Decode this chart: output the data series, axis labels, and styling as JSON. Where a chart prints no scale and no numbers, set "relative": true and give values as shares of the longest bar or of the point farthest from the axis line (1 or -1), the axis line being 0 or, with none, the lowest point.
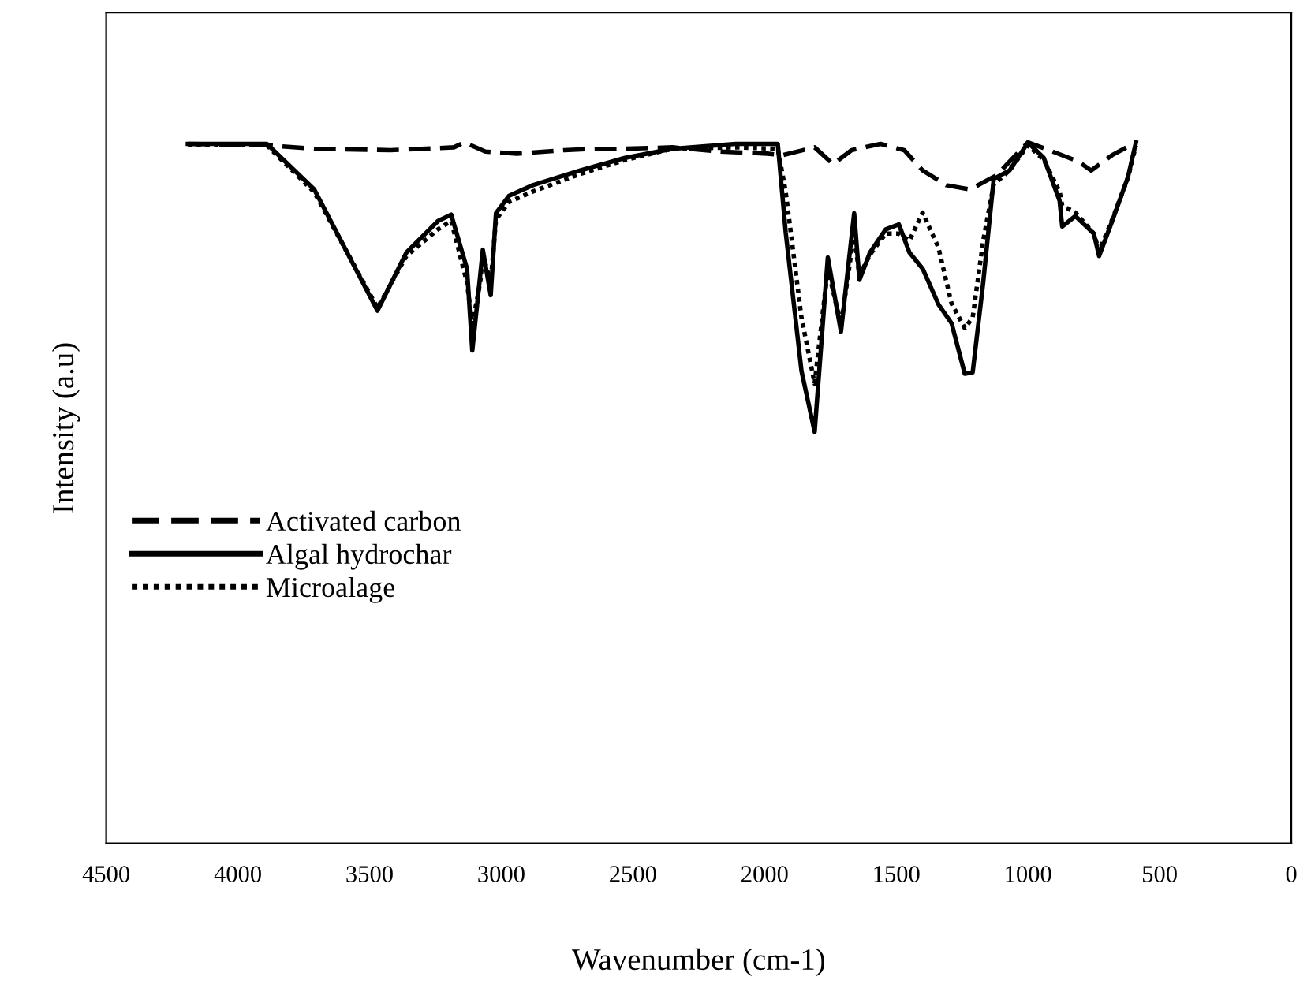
{
  "chart_data": {
    "type": "line",
    "relative": true,
    "xlabel": "Wavenumber (cm-1)",
    "ylabel": "Intensity (a.u)",
    "xlim": [
      4500,
      0
    ],
    "xticks": [
      4500,
      4000,
      3500,
      3000,
      2500,
      2000,
      1500,
      1000,
      500,
      0
    ],
    "tick_labels": "x",
    "grid": false,
    "legend": "center left",
    "marker": "none",
    "series": [
      {
        "name": "Activated carbon",
        "color": "#000000",
        "line_style": "dashed",
        "x": [
          4190,
          3890,
          3710,
          3420,
          3180,
          3140,
          3060,
          2940,
          2760,
          2640,
          2530,
          2350,
          2170,
          1990,
          1930,
          1810,
          1740,
          1670,
          1560,
          1470,
          1400,
          1310,
          1220,
          1120,
          1000,
          920,
          810,
          760,
          680,
          590
        ],
        "values": [
          0.998,
          0.996,
          0.991,
          0.989,
          0.993,
          1.0,
          0.987,
          0.984,
          0.989,
          0.991,
          0.991,
          0.993,
          0.987,
          0.984,
          0.982,
          0.993,
          0.969,
          0.989,
          0.998,
          0.989,
          0.96,
          0.939,
          0.933,
          0.953,
          1.0,
          0.989,
          0.973,
          0.96,
          0.982,
          1.0
        ]
      },
      {
        "name": "Algal hydrochar",
        "color": "#000000",
        "line_style": "solid",
        "x": [
          4190,
          3890,
          3710,
          3470,
          3360,
          3240,
          3190,
          3130,
          3110,
          3080,
          3070,
          3040,
          3020,
          2970,
          2880,
          2700,
          2530,
          2350,
          2110,
          1950,
          1920,
          1860,
          1810,
          1760,
          1710,
          1660,
          1640,
          1600,
          1540,
          1490,
          1450,
          1400,
          1340,
          1290,
          1240,
          1210,
          1170,
          1130,
          1070,
          1000,
          940,
          880,
          870,
          820,
          750,
          730,
          680,
          620,
          590
        ],
        "values": [
          0.998,
          0.998,
          0.933,
          0.76,
          0.843,
          0.888,
          0.897,
          0.82,
          0.703,
          0.81,
          0.847,
          0.782,
          0.899,
          0.924,
          0.939,
          0.96,
          0.978,
          0.991,
          0.998,
          0.998,
          0.872,
          0.674,
          0.587,
          0.836,
          0.73,
          0.899,
          0.804,
          0.843,
          0.876,
          0.883,
          0.843,
          0.82,
          0.769,
          0.742,
          0.67,
          0.672,
          0.8,
          0.948,
          0.96,
          1.0,
          0.978,
          0.917,
          0.88,
          0.895,
          0.87,
          0.838,
          0.888,
          0.951,
          1.0
        ]
      },
      {
        "name": "Microalage",
        "color": "#000000",
        "line_style": "dotted",
        "x": [
          4190,
          3890,
          3710,
          3470,
          3360,
          3240,
          3190,
          3130,
          3110,
          3080,
          3070,
          3040,
          3020,
          2970,
          2880,
          2700,
          2530,
          2350,
          2110,
          1950,
          1920,
          1860,
          1810,
          1760,
          1710,
          1660,
          1640,
          1600,
          1540,
          1490,
          1450,
          1400,
          1340,
          1290,
          1240,
          1210,
          1170,
          1130,
          1070,
          1000,
          940,
          880,
          870,
          820,
          750,
          730,
          680,
          620,
          590
        ],
        "values": [
          0.996,
          0.996,
          0.929,
          0.764,
          0.838,
          0.876,
          0.888,
          0.8,
          0.74,
          0.8,
          0.84,
          0.8,
          0.89,
          0.915,
          0.93,
          0.955,
          0.975,
          0.991,
          0.993,
          0.991,
          0.93,
          0.75,
          0.656,
          0.82,
          0.74,
          0.87,
          0.81,
          0.84,
          0.87,
          0.87,
          0.86,
          0.9,
          0.85,
          0.77,
          0.735,
          0.75,
          0.86,
          0.94,
          0.96,
          0.996,
          0.975,
          0.93,
          0.91,
          0.9,
          0.87,
          0.845,
          0.89,
          0.95,
          0.996
        ]
      }
    ]
  }
}
